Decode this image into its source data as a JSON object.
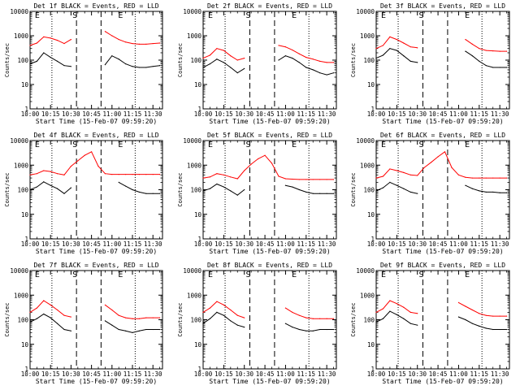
{
  "figure": {
    "layout": "3x3 grid of panels",
    "common": {
      "xlabel": "Start Time (15-Feb-07 09:59:20)",
      "ylabel": "Counts/sec",
      "x_ticks": [
        "10:00",
        "10:15",
        "10:30",
        "10:45",
        "11:00",
        "11:15",
        "11:30"
      ],
      "y_ticks": [
        "1",
        "10",
        "100",
        "1000",
        "10000"
      ],
      "markers": [
        "E",
        "S",
        "E"
      ]
    }
  },
  "colors": {
    "events": "#000000",
    "lld": "#ff0000",
    "axes": "#000000",
    "background": "#ffffff"
  },
  "chart_data": [
    {
      "type": "line",
      "title": "Det 1f BLACK = Events, RED = LLD",
      "xlabel": "Start Time (15-Feb-07 09:59:20)",
      "ylabel": "Counts/sec",
      "xlim": [
        "10:00",
        "11:37"
      ],
      "ylim": [
        1,
        10000
      ],
      "yscale": "log",
      "x": [
        "10:00",
        "10:05",
        "10:10",
        "10:15",
        "10:20",
        "10:25",
        "10:30",
        "10:35",
        "10:40",
        "10:45",
        "10:50",
        "10:55",
        "11:00",
        "11:05",
        "11:10",
        "11:15",
        "11:20",
        "11:25",
        "11:30",
        "11:35"
      ],
      "series": [
        {
          "name": "Events",
          "color": "#000000",
          "values": [
            70,
            90,
            200,
            130,
            90,
            60,
            55,
            null,
            null,
            null,
            null,
            65,
            150,
            110,
            70,
            55,
            50,
            50,
            55,
            60
          ]
        },
        {
          "name": "LLD",
          "color": "#ff0000",
          "values": [
            400,
            500,
            900,
            800,
            650,
            480,
            700,
            null,
            null,
            null,
            null,
            1500,
            1000,
            700,
            550,
            480,
            450,
            450,
            480,
            500
          ]
        }
      ],
      "vlines_dashed": [
        "10:34",
        "10:52"
      ],
      "vlines_dotted": [
        "10:16",
        "11:17"
      ]
    },
    {
      "type": "line",
      "title": "Det 2f BLACK = Events, RED = LLD",
      "xlabel": "Start Time (15-Feb-07 09:59:20)",
      "ylabel": "Counts/sec",
      "xlim": [
        "10:00",
        "11:37"
      ],
      "ylim": [
        1,
        10000
      ],
      "yscale": "log",
      "x": [
        "10:00",
        "10:05",
        "10:10",
        "10:15",
        "10:20",
        "10:25",
        "10:30",
        "10:35",
        "10:40",
        "10:45",
        "10:50",
        "10:55",
        "11:00",
        "11:05",
        "11:10",
        "11:15",
        "11:20",
        "11:25",
        "11:30",
        "11:35"
      ],
      "series": [
        {
          "name": "Events",
          "color": "#000000",
          "values": [
            50,
            70,
            110,
            80,
            50,
            30,
            45,
            null,
            null,
            null,
            null,
            100,
            150,
            120,
            80,
            50,
            40,
            30,
            25,
            30
          ]
        },
        {
          "name": "LLD",
          "color": "#ff0000",
          "values": [
            120,
            160,
            300,
            250,
            150,
            100,
            120,
            null,
            null,
            null,
            null,
            400,
            350,
            260,
            180,
            130,
            110,
            90,
            80,
            80
          ]
        }
      ],
      "vlines_dashed": [
        "10:34",
        "10:52"
      ],
      "vlines_dotted": [
        "10:16",
        "11:17"
      ]
    },
    {
      "type": "line",
      "title": "Det 3f BLACK = Events, RED = LLD",
      "xlabel": "Start Time (15-Feb-07 09:59:20)",
      "ylabel": "Counts/sec",
      "xlim": [
        "10:00",
        "11:37"
      ],
      "ylim": [
        1,
        10000
      ],
      "yscale": "log",
      "x": [
        "10:00",
        "10:05",
        "10:10",
        "10:15",
        "10:20",
        "10:25",
        "10:30",
        "10:35",
        "10:40",
        "10:45",
        "10:50",
        "10:55",
        "11:00",
        "11:05",
        "11:10",
        "11:15",
        "11:20",
        "11:25",
        "11:30",
        "11:35"
      ],
      "series": [
        {
          "name": "Events",
          "color": "#000000",
          "values": [
            120,
            160,
            300,
            250,
            150,
            90,
            80,
            null,
            null,
            null,
            null,
            null,
            null,
            230,
            150,
            90,
            60,
            50,
            50,
            50
          ]
        },
        {
          "name": "LLD",
          "color": "#ff0000",
          "values": [
            300,
            400,
            900,
            700,
            500,
            350,
            320,
            null,
            null,
            null,
            null,
            null,
            null,
            700,
            450,
            300,
            250,
            240,
            230,
            230
          ]
        }
      ],
      "vlines_dashed": [
        "10:34",
        "10:52"
      ],
      "vlines_dotted": [
        "10:16",
        "11:17"
      ]
    },
    {
      "type": "line",
      "title": "Det 4f BLACK = Events, RED = LLD",
      "xlabel": "Start Time (15-Feb-07 09:59:20)",
      "ylabel": "Counts/sec",
      "xlim": [
        "10:00",
        "11:37"
      ],
      "ylim": [
        1,
        10000
      ],
      "yscale": "log",
      "x": [
        "10:00",
        "10:05",
        "10:10",
        "10:15",
        "10:20",
        "10:25",
        "10:30",
        "10:35",
        "10:40",
        "10:45",
        "10:50",
        "10:55",
        "11:00",
        "11:05",
        "11:10",
        "11:15",
        "11:20",
        "11:25",
        "11:30",
        "11:35"
      ],
      "series": [
        {
          "name": "Events",
          "color": "#000000",
          "values": [
            100,
            130,
            210,
            150,
            110,
            70,
            120,
            null,
            null,
            null,
            null,
            null,
            null,
            200,
            140,
            100,
            80,
            70,
            70,
            70
          ]
        },
        {
          "name": "LLD",
          "color": "#ff0000",
          "values": [
            400,
            450,
            600,
            550,
            450,
            400,
            900,
            1500,
            2500,
            3500,
            900,
            450,
            420,
            420,
            420,
            420,
            420,
            420,
            420,
            420
          ]
        }
      ],
      "vlines_dashed": [
        "10:34",
        "10:52"
      ],
      "vlines_dotted": [
        "10:16",
        "11:17"
      ]
    },
    {
      "type": "line",
      "title": "Det 5f BLACK = Events, RED = LLD",
      "xlabel": "Start Time (15-Feb-07 09:59:20)",
      "ylabel": "Counts/sec",
      "xlim": [
        "10:00",
        "11:37"
      ],
      "ylim": [
        1,
        10000
      ],
      "yscale": "log",
      "x": [
        "10:00",
        "10:05",
        "10:10",
        "10:15",
        "10:20",
        "10:25",
        "10:30",
        "10:35",
        "10:40",
        "10:45",
        "10:50",
        "10:55",
        "11:00",
        "11:05",
        "11:10",
        "11:15",
        "11:20",
        "11:25",
        "11:30",
        "11:35"
      ],
      "series": [
        {
          "name": "Events",
          "color": "#000000",
          "values": [
            90,
            110,
            170,
            130,
            90,
            60,
            100,
            null,
            null,
            null,
            null,
            null,
            150,
            130,
            100,
            80,
            70,
            70,
            70,
            70
          ]
        },
        {
          "name": "LLD",
          "color": "#ff0000",
          "values": [
            300,
            330,
            450,
            400,
            330,
            280,
            600,
            1100,
            1800,
            2500,
            1200,
            350,
            280,
            270,
            260,
            260,
            260,
            260,
            260,
            260
          ]
        }
      ],
      "vlines_dashed": [
        "10:34",
        "10:52"
      ],
      "vlines_dotted": [
        "10:16",
        "11:17"
      ]
    },
    {
      "type": "line",
      "title": "Det 6f BLACK = Events, RED = LLD",
      "xlabel": "Start Time (15-Feb-07 09:59:20)",
      "ylabel": "Counts/sec",
      "xlim": [
        "10:00",
        "11:37"
      ],
      "ylim": [
        1,
        10000
      ],
      "yscale": "log",
      "x": [
        "10:00",
        "10:05",
        "10:10",
        "10:15",
        "10:20",
        "10:25",
        "10:30",
        "10:35",
        "10:40",
        "10:45",
        "10:50",
        "10:55",
        "11:00",
        "11:05",
        "11:10",
        "11:15",
        "11:20",
        "11:25",
        "11:30",
        "11:35"
      ],
      "series": [
        {
          "name": "Events",
          "color": "#000000",
          "values": [
            90,
            120,
            200,
            150,
            110,
            80,
            70,
            null,
            null,
            null,
            null,
            null,
            null,
            150,
            110,
            90,
            80,
            80,
            75,
            75
          ]
        },
        {
          "name": "LLD",
          "color": "#ff0000",
          "values": [
            300,
            350,
            700,
            600,
            500,
            400,
            380,
            800,
            1300,
            2200,
            3500,
            800,
            400,
            320,
            300,
            300,
            300,
            300,
            300,
            300
          ]
        }
      ],
      "vlines_dashed": [
        "10:34",
        "10:52"
      ],
      "vlines_dotted": [
        "10:16",
        "11:17"
      ]
    },
    {
      "type": "line",
      "title": "Det 7f BLACK = Events, RED = LLD",
      "xlabel": "Start Time (15-Feb-07 09:59:20)",
      "ylabel": "Counts/sec",
      "xlim": [
        "10:00",
        "11:37"
      ],
      "ylim": [
        1,
        10000
      ],
      "yscale": "log",
      "x": [
        "10:00",
        "10:05",
        "10:10",
        "10:15",
        "10:20",
        "10:25",
        "10:30",
        "10:35",
        "10:40",
        "10:45",
        "10:50",
        "10:55",
        "11:00",
        "11:05",
        "11:10",
        "11:15",
        "11:20",
        "11:25",
        "11:30",
        "11:35"
      ],
      "series": [
        {
          "name": "Events",
          "color": "#000000",
          "values": [
            80,
            110,
            170,
            120,
            70,
            40,
            35,
            null,
            null,
            null,
            null,
            90,
            60,
            40,
            35,
            30,
            35,
            40,
            40,
            40
          ]
        },
        {
          "name": "LLD",
          "color": "#ff0000",
          "values": [
            200,
            300,
            600,
            400,
            250,
            150,
            130,
            null,
            null,
            null,
            null,
            400,
            250,
            150,
            120,
            110,
            110,
            120,
            120,
            120
          ]
        }
      ],
      "vlines_dashed": [
        "10:34",
        "10:52"
      ],
      "vlines_dotted": [
        "10:16",
        "11:17"
      ]
    },
    {
      "type": "line",
      "title": "Det 8f BLACK = Events, RED = LLD",
      "xlabel": "Start Time (15-Feb-07 09:59:20)",
      "ylabel": "Counts/sec",
      "xlim": [
        "10:00",
        "11:37"
      ],
      "ylim": [
        1,
        10000
      ],
      "yscale": "log",
      "x": [
        "10:00",
        "10:05",
        "10:10",
        "10:15",
        "10:20",
        "10:25",
        "10:30",
        "10:35",
        "10:40",
        "10:45",
        "10:50",
        "10:55",
        "11:00",
        "11:05",
        "11:10",
        "11:15",
        "11:20",
        "11:25",
        "11:30",
        "11:35"
      ],
      "series": [
        {
          "name": "Events",
          "color": "#000000",
          "values": [
            70,
            110,
            200,
            150,
            90,
            60,
            50,
            null,
            null,
            null,
            null,
            null,
            70,
            50,
            40,
            35,
            35,
            40,
            40,
            40
          ]
        },
        {
          "name": "LLD",
          "color": "#ff0000",
          "values": [
            200,
            300,
            550,
            400,
            250,
            150,
            120,
            null,
            null,
            null,
            null,
            null,
            300,
            200,
            150,
            120,
            110,
            110,
            110,
            110
          ]
        }
      ],
      "vlines_dashed": [
        "10:34",
        "10:52"
      ],
      "vlines_dotted": [
        "10:16",
        "11:17"
      ]
    },
    {
      "type": "line",
      "title": "Det 9f BLACK = Events, RED = LLD",
      "xlabel": "Start Time (15-Feb-07 09:59:20)",
      "ylabel": "Counts/sec",
      "xlim": [
        "10:00",
        "11:37"
      ],
      "ylim": [
        1,
        10000
      ],
      "yscale": "log",
      "x": [
        "10:00",
        "10:05",
        "10:10",
        "10:15",
        "10:20",
        "10:25",
        "10:30",
        "10:35",
        "10:40",
        "10:45",
        "10:50",
        "10:55",
        "11:00",
        "11:05",
        "11:10",
        "11:15",
        "11:20",
        "11:25",
        "11:30",
        "11:35"
      ],
      "series": [
        {
          "name": "Events",
          "color": "#000000",
          "values": [
            80,
            110,
            220,
            160,
            110,
            70,
            60,
            null,
            null,
            null,
            null,
            null,
            130,
            100,
            70,
            55,
            45,
            40,
            40,
            40
          ]
        },
        {
          "name": "LLD",
          "color": "#ff0000",
          "values": [
            200,
            280,
            600,
            450,
            320,
            200,
            180,
            null,
            null,
            null,
            null,
            null,
            500,
            350,
            250,
            180,
            150,
            140,
            140,
            140
          ]
        }
      ],
      "vlines_dashed": [
        "10:34",
        "10:52"
      ],
      "vlines_dotted": [
        "10:16",
        "11:17"
      ]
    }
  ]
}
